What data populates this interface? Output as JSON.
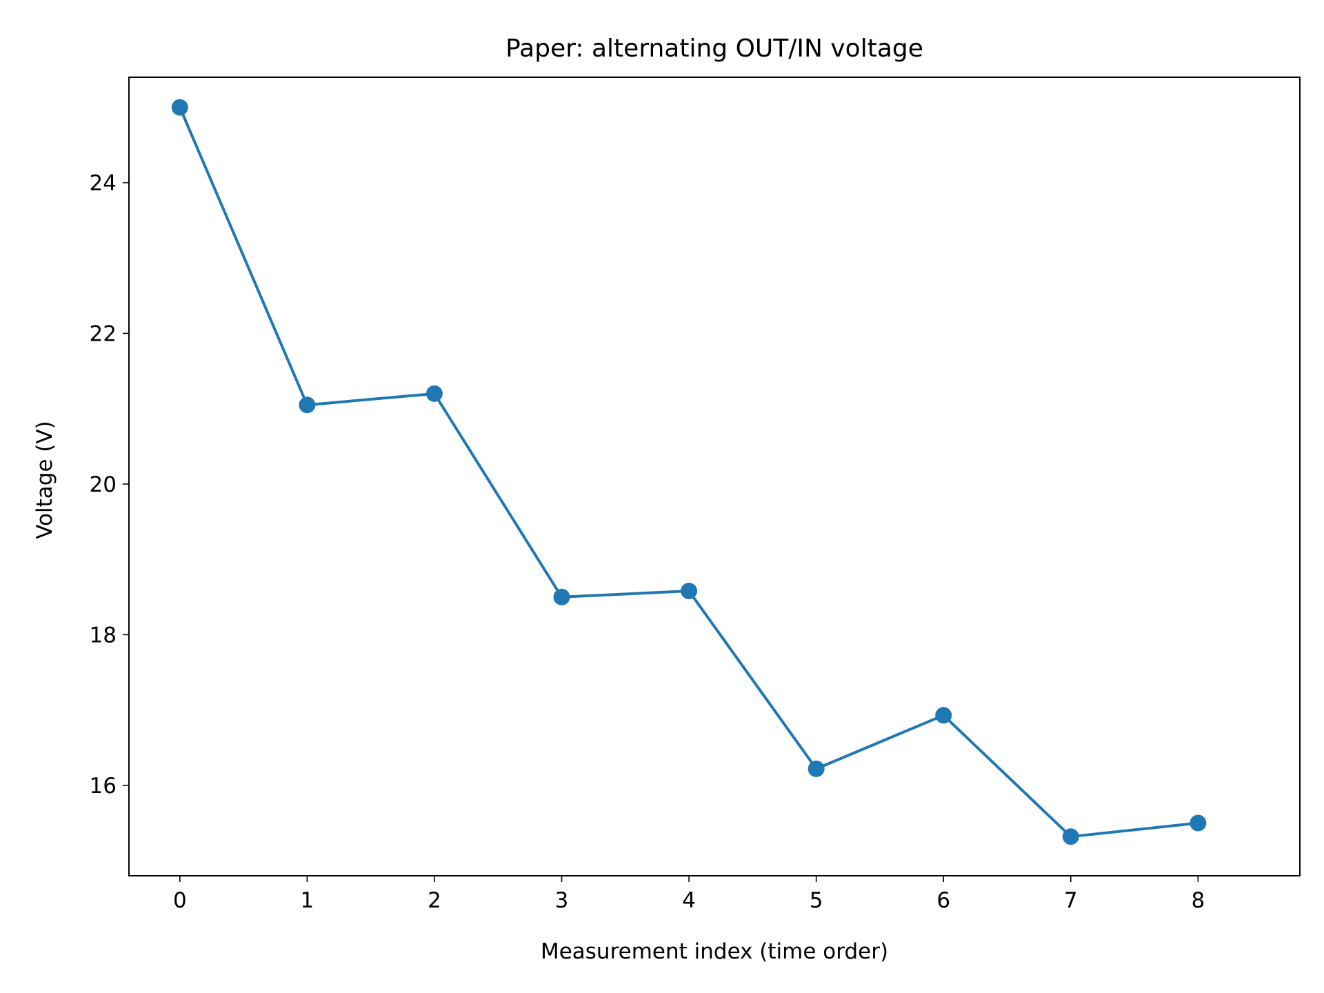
{
  "chart_data": {
    "type": "line",
    "title": "Paper: alternating OUT/IN voltage",
    "xlabel": "Measurement index (time order)",
    "ylabel": "Voltage (V)",
    "x": [
      0,
      1,
      2,
      3,
      4,
      5,
      6,
      7,
      8
    ],
    "series": [
      {
        "values": [
          25.0,
          21.05,
          21.2,
          18.5,
          18.58,
          16.22,
          16.93,
          15.32,
          15.5
        ],
        "color": "#1f77b4",
        "marker": "circle"
      }
    ],
    "xticks": [
      0,
      1,
      2,
      3,
      4,
      5,
      6,
      7,
      8
    ],
    "yticks": [
      16,
      18,
      20,
      22,
      24
    ],
    "xlim": [
      -0.4,
      8.8
    ],
    "ylim": [
      14.8,
      25.4
    ],
    "grid": false,
    "legend": "none"
  }
}
